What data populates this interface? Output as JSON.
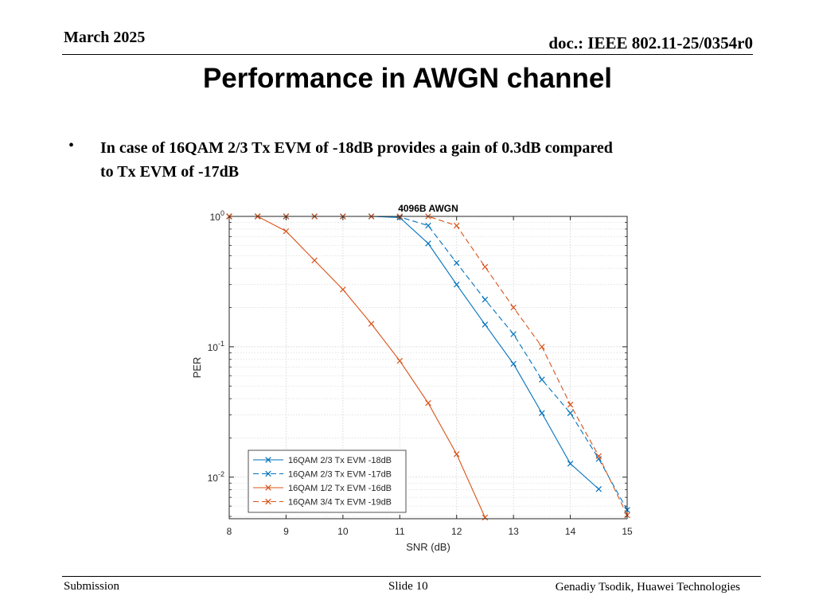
{
  "header": {
    "date": "March 2025",
    "doc_id": "doc.: IEEE 802.11-25/0354r0"
  },
  "slide": {
    "title": "Performance in AWGN channel",
    "bullet_symbol": "•",
    "bullet_line1": "In case of 16QAM 2/3 Tx EVM of -18dB provides a gain of 0.3dB compared",
    "bullet_line2": "to Tx EVM of -17dB"
  },
  "footer": {
    "left": "Submission",
    "center": "Slide 10",
    "right": "Genadiy Tsodik, Huawei Technologies"
  },
  "chart_data": {
    "type": "line",
    "title": "4096B AWGN",
    "xlabel": "SNR (dB)",
    "ylabel": "PER",
    "xlim": [
      8,
      15
    ],
    "ylim": [
      0.0048,
      1
    ],
    "yscale": "log",
    "grid": true,
    "legend_position": "bottom-left",
    "x_ticks": [
      "8",
      "9",
      "10",
      "11",
      "12",
      "13",
      "14",
      "15"
    ],
    "y_ticks": [
      {
        "base": "10",
        "exp": "0",
        "value": 1
      },
      {
        "base": "10",
        "exp": "-1",
        "value": 0.1
      },
      {
        "base": "10",
        "exp": "-2",
        "value": 0.01
      }
    ],
    "series": [
      {
        "name": "16QAM 2/3 Tx EVM -18dB",
        "color": "#0072BD",
        "dash": "solid",
        "x": [
          8,
          8.5,
          9,
          9.5,
          10,
          10.5,
          11,
          11.5,
          12,
          12.5,
          13,
          13.5,
          14,
          14.5
        ],
        "y": [
          1,
          1,
          1,
          1,
          1,
          1,
          0.98,
          0.62,
          0.3,
          0.148,
          0.074,
          0.031,
          0.0127,
          0.0081
        ]
      },
      {
        "name": "16QAM 2/3 Tx EVM -17dB",
        "color": "#0072BD",
        "dash": "dashed",
        "x": [
          8,
          8.5,
          9,
          9.5,
          10,
          10.5,
          11,
          11.5,
          12,
          12.5,
          13,
          13.5,
          14,
          14.5,
          15
        ],
        "y": [
          1,
          1,
          1,
          1,
          1,
          1,
          0.99,
          0.85,
          0.44,
          0.23,
          0.125,
          0.056,
          0.031,
          0.0138,
          0.0056
        ]
      },
      {
        "name": "16QAM 1/2 Tx EVM -16dB",
        "color": "#D95319",
        "dash": "solid",
        "x": [
          8,
          8.5,
          9,
          9.5,
          10,
          10.5,
          11,
          11.5,
          12,
          12.5
        ],
        "y": [
          1,
          1,
          0.77,
          0.46,
          0.275,
          0.15,
          0.078,
          0.037,
          0.015,
          0.0049
        ]
      },
      {
        "name": "16QAM 3/4 Tx EVM -19dB",
        "color": "#D95319",
        "dash": "dashed",
        "x": [
          8,
          8.5,
          9,
          9.5,
          10,
          10.5,
          11,
          11.5,
          12,
          12.5,
          13,
          13.5,
          14,
          14.5,
          15
        ],
        "y": [
          1,
          1,
          1,
          1,
          1,
          1,
          1,
          1,
          0.85,
          0.41,
          0.2,
          0.1,
          0.036,
          0.0145,
          0.0051
        ]
      }
    ]
  }
}
